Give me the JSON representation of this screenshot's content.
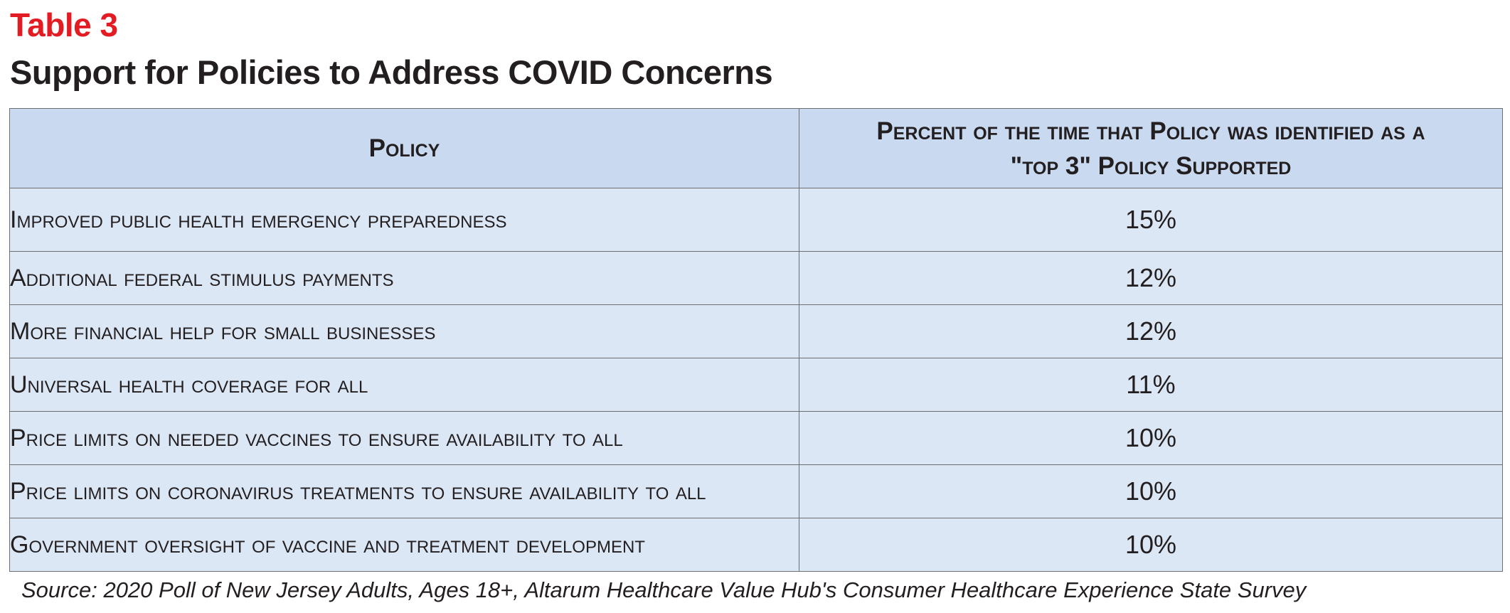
{
  "header": {
    "table_number": "Table 3",
    "title": "Support for Policies to Address COVID Concerns"
  },
  "table": {
    "columns": [
      "Policy",
      "Percent of the time that Policy was identified as a \"top 3\" Policy Supported"
    ],
    "rows": [
      {
        "policy": "Improved public health emergency preparedness",
        "percent": "15%"
      },
      {
        "policy": "Additional federal stimulus payments",
        "percent": "12%"
      },
      {
        "policy": "More financial help for small businesses",
        "percent": "12%"
      },
      {
        "policy": "Universal health coverage for all",
        "percent": "11%"
      },
      {
        "policy": "Price limits on needed vaccines to ensure availability to all",
        "percent": "10%"
      },
      {
        "policy": "Price limits on coronavirus treatments to ensure availability to all",
        "percent": "10%"
      },
      {
        "policy": "Government oversight of vaccine and treatment development",
        "percent": "10%"
      }
    ]
  },
  "source": "Source: 2020 Poll of New Jersey Adults, Ages 18+, Altarum Healthcare Value Hub's Consumer Healthcare Experience State Survey",
  "colors": {
    "accent_red": "#e31b23",
    "header_fill": "#c9daf0",
    "row_fill": "#dce7f5",
    "border": "#6d6e71",
    "text": "#231f20"
  }
}
